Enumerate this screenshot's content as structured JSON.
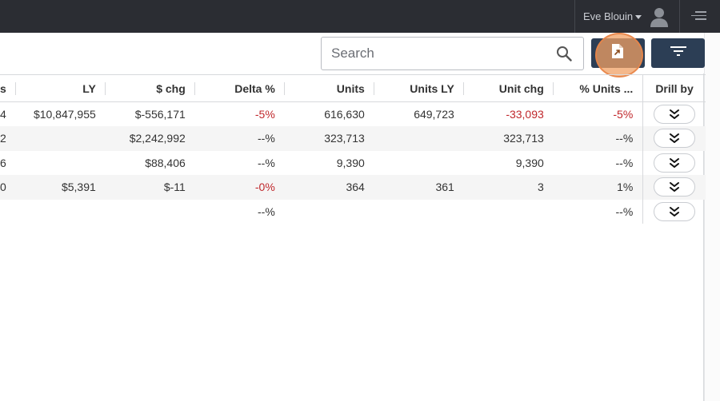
{
  "header": {
    "user_name": "Eve Blouin"
  },
  "toolbar": {
    "search_placeholder": "Search",
    "search_value": ""
  },
  "colors": {
    "topbar": "#2b2d33",
    "button": "#2c3e55",
    "negative": "#c0282c",
    "highlight": "#f0a064"
  },
  "table": {
    "columns": [
      "s",
      "LY",
      "$ chg",
      "Delta %",
      "Units",
      "Units LY",
      "Unit chg",
      "% Units ...",
      "Drill by"
    ],
    "rows": [
      {
        "c0": "4",
        "c1": "$10,847,955",
        "c2": "$-556,171",
        "c3": "-5%",
        "c4": "616,630",
        "c5": "649,723",
        "c6": "-33,093",
        "c7": "-5%"
      },
      {
        "c0": "2",
        "c1": "",
        "c2": "$2,242,992",
        "c3": "--%",
        "c4": "323,713",
        "c5": "",
        "c6": "323,713",
        "c7": "--%"
      },
      {
        "c0": "6",
        "c1": "",
        "c2": "$88,406",
        "c3": "--%",
        "c4": "9,390",
        "c5": "",
        "c6": "9,390",
        "c7": "--%"
      },
      {
        "c0": "0",
        "c1": "$5,391",
        "c2": "$-11",
        "c3": "-0%",
        "c4": "364",
        "c5": "361",
        "c6": "3",
        "c7": "1%"
      },
      {
        "c0": "",
        "c1": "",
        "c2": "",
        "c3": "--%",
        "c4": "",
        "c5": "",
        "c6": "",
        "c7": "--%"
      }
    ]
  }
}
